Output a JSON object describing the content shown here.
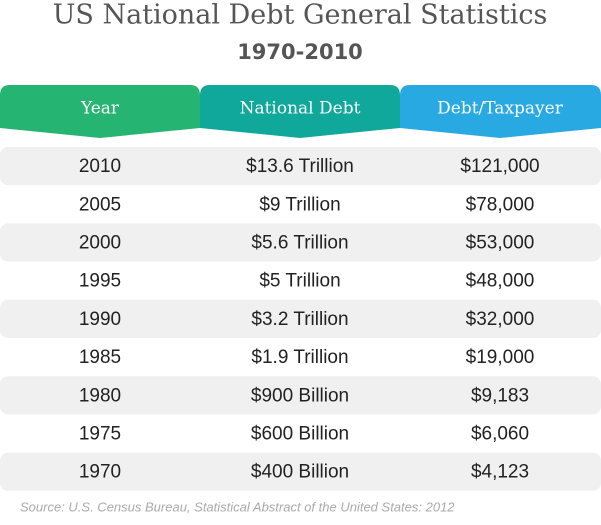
{
  "header": {
    "title": "US National Debt General Statistics",
    "subtitle": "1970-2010"
  },
  "table": {
    "columns": [
      "Year",
      "National Debt",
      "Debt/Taxpayer"
    ],
    "rows": [
      [
        "2010",
        "$13.6 Trillion",
        "$121,000"
      ],
      [
        "2005",
        "$9 Trillion",
        "$78,000"
      ],
      [
        "2000",
        "$5.6 Trillion",
        "$53,000"
      ],
      [
        "1995",
        "$5 Trillion",
        "$48,000"
      ],
      [
        "1990",
        "$3.2 Trillion",
        "$32,000"
      ],
      [
        "1985",
        "$1.9 Trillion",
        "$19,000"
      ],
      [
        "1980",
        "$900 Billion",
        "$9,183"
      ],
      [
        "1975",
        "$600 Billion",
        "$6,060"
      ],
      [
        "1970",
        "$400 Billion",
        "$4,123"
      ]
    ]
  },
  "source": "Source: U.S. Census Bureau, Statistical Abstract of the United States: 2012"
}
